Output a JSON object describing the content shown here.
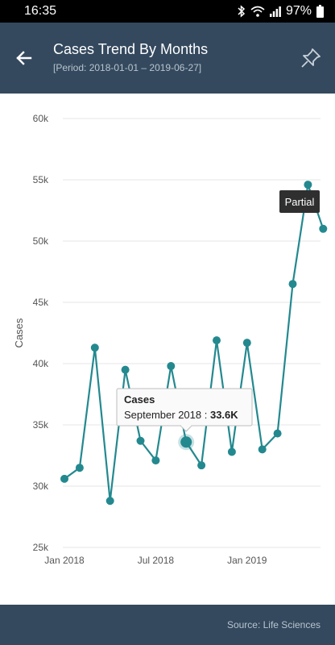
{
  "status": {
    "time": "16:35",
    "battery": "97%"
  },
  "header": {
    "title": "Cases Trend By Months",
    "subtitle": "[Period: 2018-01-01 – 2019-06-27]"
  },
  "tooltip": {
    "title": "Cases",
    "label": "September 2018 :",
    "value": "33.6K"
  },
  "partial_label": "Partial",
  "footer": {
    "source": "Source: Life Sciences"
  },
  "colors": {
    "header": "#34495e",
    "line": "#23898f",
    "grid": "#e4e4e4",
    "tooltip_label_bg": "#2f2f2f"
  },
  "chart_data": {
    "type": "line",
    "ylabel": "Cases",
    "yticks": [
      "25k",
      "30k",
      "35k",
      "40k",
      "45k",
      "50k",
      "55k",
      "60k"
    ],
    "ylim": [
      25000,
      60000
    ],
    "xticks": [
      {
        "label": "Jan 2018",
        "x": 0
      },
      {
        "label": "Jul 2018",
        "x": 6
      },
      {
        "label": "Jan 2019",
        "x": 12
      }
    ],
    "series": [
      {
        "x": [
          "2018-01",
          "2018-02",
          "2018-03",
          "2018-04",
          "2018-05",
          "2018-06",
          "2018-07",
          "2018-08",
          "2018-09",
          "2018-10",
          "2018-11",
          "2018-12",
          "2019-01",
          "2019-02",
          "2019-03",
          "2019-04",
          "2019-05",
          "2019-06"
        ],
        "values": [
          30600,
          31500,
          41300,
          28800,
          39500,
          33700,
          32100,
          39800,
          33600,
          31700,
          41900,
          32800,
          41700,
          33000,
          34300,
          46500,
          54600,
          51000
        ]
      }
    ],
    "highlighted": "2018-09",
    "partial": "2019-06",
    "grid": true
  }
}
